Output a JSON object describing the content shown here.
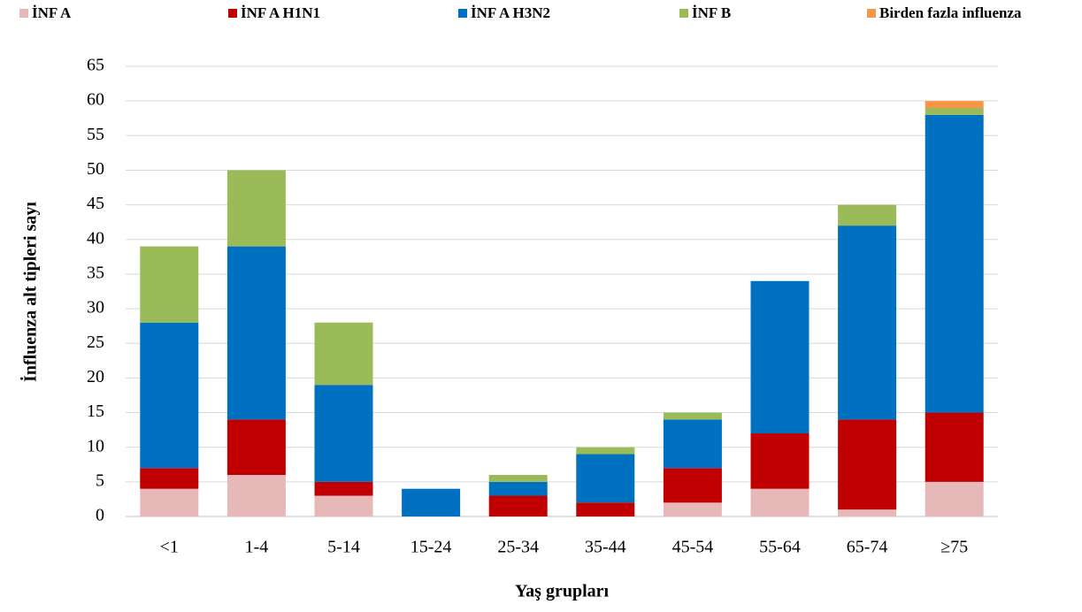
{
  "chart_data": {
    "type": "stacked_bar",
    "x_label": "Yaş grupları",
    "y_label": "İnfluenza alt tipleri sayı",
    "categories": [
      "<1",
      "1-4",
      "5-14",
      "15-24",
      "25-34",
      "35-44",
      "45-54",
      "55-64",
      "65-74",
      "≥75"
    ],
    "series": [
      {
        "name": "İNF A",
        "color": "#e6b9b8",
        "values": [
          4,
          6,
          3,
          0,
          0,
          0,
          2,
          4,
          1,
          5
        ]
      },
      {
        "name": "İNF A H1N1",
        "color": "#c00000",
        "values": [
          3,
          8,
          2,
          0,
          3,
          2,
          5,
          8,
          13,
          10
        ]
      },
      {
        "name": "İNF A H3N2",
        "color": "#0070c0",
        "values": [
          21,
          25,
          14,
          4,
          2,
          7,
          7,
          22,
          28,
          43
        ]
      },
      {
        "name": "İNF B",
        "color": "#9bbb59",
        "values": [
          11,
          11,
          9,
          0,
          1,
          1,
          1,
          0,
          3,
          1
        ]
      },
      {
        "name": "Birden fazla influenza",
        "color": "#f79646",
        "values": [
          0,
          0,
          0,
          0,
          0,
          0,
          0,
          0,
          0,
          1
        ]
      }
    ],
    "ylim": [
      0,
      65
    ],
    "yticks": [
      0,
      5,
      10,
      15,
      20,
      25,
      30,
      35,
      40,
      45,
      50,
      55,
      60,
      65
    ],
    "grid": true,
    "legend": "top"
  }
}
